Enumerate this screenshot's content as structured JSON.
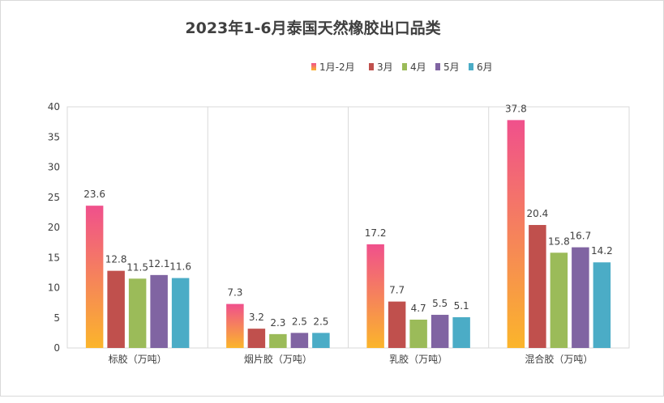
{
  "chart_data": {
    "type": "bar",
    "title": "2023年1-6月泰国天然橡胶出口品类",
    "categories": [
      "标胶（万吨）",
      "烟片胶（万吨）",
      "乳胶（万吨）",
      "混合胶（万吨）"
    ],
    "series": [
      {
        "name": "1月-2月",
        "values": [
          23.6,
          7.3,
          17.2,
          37.8
        ],
        "color": "#f0508c",
        "color2": "#fbb52b"
      },
      {
        "name": "3月",
        "values": [
          12.8,
          3.2,
          7.7,
          20.4
        ],
        "color": "#c0504d"
      },
      {
        "name": "4月",
        "values": [
          11.5,
          2.3,
          4.7,
          15.8
        ],
        "color": "#9bbb59"
      },
      {
        "name": "5月",
        "values": [
          12.1,
          2.5,
          5.5,
          16.7
        ],
        "color": "#8064a2"
      },
      {
        "name": "6月",
        "values": [
          11.6,
          2.5,
          5.1,
          14.2
        ],
        "color": "#4bacc6"
      }
    ],
    "ylim": [
      0,
      40
    ],
    "yticks": [
      0,
      5,
      10,
      15,
      20,
      25,
      30,
      35,
      40
    ],
    "xlabel": "",
    "ylabel": "",
    "legend": "top",
    "grid": "vertical-category-separators"
  }
}
